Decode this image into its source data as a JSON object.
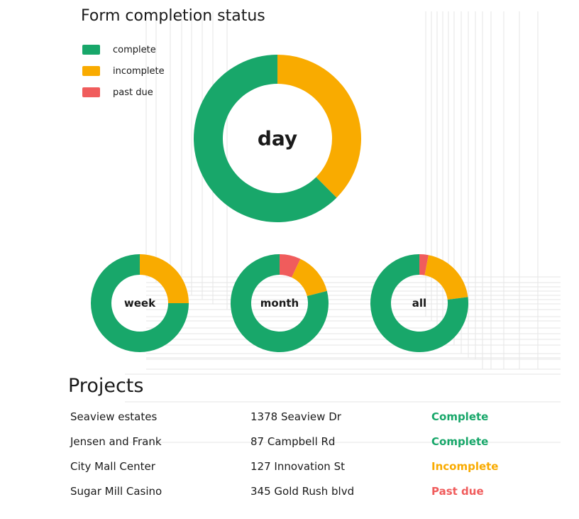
{
  "colors": {
    "complete": "#18a76a",
    "incomplete": "#f9ab00",
    "past_due": "#f05c5c",
    "grid": "#e6e6e6"
  },
  "chart_data": {
    "type": "pie",
    "title": "Form completion status",
    "legend": {
      "placement": "top-left",
      "entries": [
        "complete",
        "incomplete",
        "past due"
      ]
    },
    "charts": [
      {
        "label": "day",
        "values": {
          "complete": 62.5,
          "incomplete": 37.5,
          "past_due": 0
        }
      },
      {
        "label": "week",
        "values": {
          "complete": 75,
          "incomplete": 25,
          "past_due": 0
        }
      },
      {
        "label": "month",
        "values": {
          "complete": 79,
          "incomplete": 14,
          "past_due": 7
        }
      },
      {
        "label": "all",
        "values": {
          "complete": 77,
          "incomplete": 20,
          "past_due": 3
        }
      }
    ]
  },
  "projects": {
    "title": "Projects",
    "rows": [
      {
        "name": "Seaview estates",
        "address": "1378 Seaview Dr",
        "status": "Complete",
        "status_key": "complete"
      },
      {
        "name": "Jensen and Frank",
        "address": "87 Campbell Rd",
        "status": "Complete",
        "status_key": "complete"
      },
      {
        "name": "City Mall Center",
        "address": "127 Innovation St",
        "status": "Incomplete",
        "status_key": "incomplete"
      },
      {
        "name": "Sugar Mill Casino",
        "address": "345 Gold Rush blvd",
        "status": "Past due",
        "status_key": "past_due"
      }
    ]
  }
}
